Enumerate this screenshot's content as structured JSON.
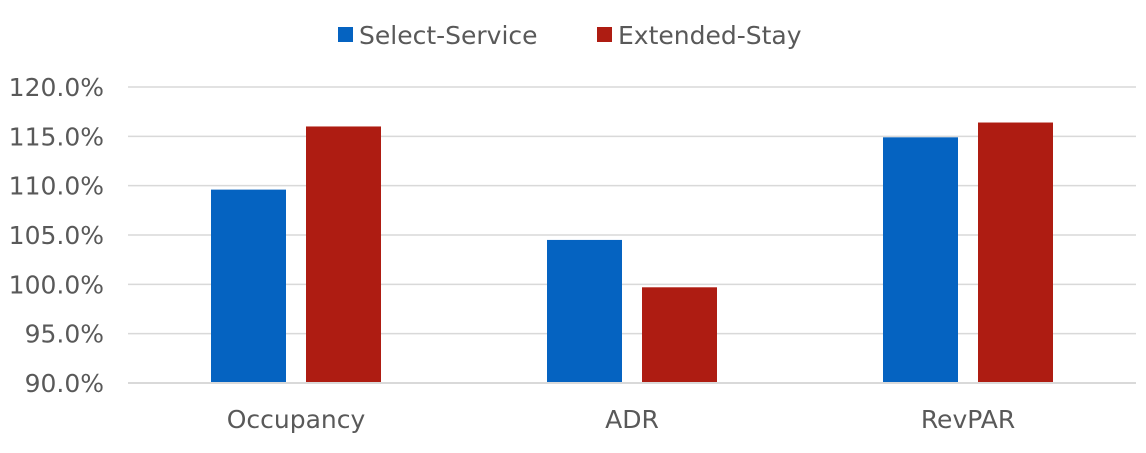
{
  "chart_data": {
    "type": "bar",
    "categories": [
      "Occupancy",
      "ADR",
      "RevPAR"
    ],
    "series": [
      {
        "name": "Select-Service",
        "values": [
          109.6,
          104.5,
          114.9
        ],
        "color": "#0563C1"
      },
      {
        "name": "Extended-Stay",
        "values": [
          116.0,
          99.7,
          116.4
        ],
        "color": "#AE1C12"
      }
    ],
    "yticks": [
      "90.0%",
      "95.0%",
      "100.0%",
      "105.0%",
      "110.0%",
      "115.0%",
      "120.0%"
    ],
    "ylim": [
      90,
      120
    ],
    "grid": true,
    "legend_position": "top-center",
    "title": "",
    "xlabel": "",
    "ylabel": ""
  }
}
